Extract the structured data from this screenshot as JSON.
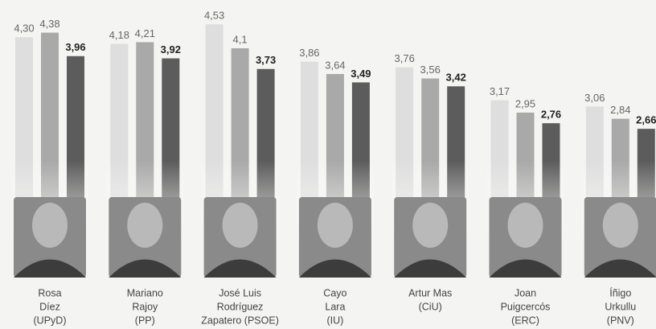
{
  "chart_data": {
    "type": "bar",
    "categories": [
      [
        "Rosa",
        "Díez",
        "(UPyD)"
      ],
      [
        "Mariano",
        "Rajoy",
        "(PP)"
      ],
      [
        "José Luis",
        "Rodríguez",
        "Zapatero (PSOE)"
      ],
      [
        "Cayo",
        "Lara",
        "(IU)"
      ],
      [
        "Artur Mas",
        "(CiU)"
      ],
      [
        "Joan",
        "Puigcercós",
        "(ERC)"
      ],
      [
        "Íñigo",
        "Urkullu",
        "(PNV)"
      ]
    ],
    "series": [
      {
        "color": "#dedede",
        "values": [
          4.3,
          4.18,
          4.53,
          3.86,
          3.76,
          3.17,
          3.06
        ],
        "value_labels": [
          "4,30",
          "4,18",
          "4,53",
          "3,86",
          "3,76",
          "3,17",
          "3,06"
        ]
      },
      {
        "color": "#a9a9a9",
        "values": [
          4.38,
          4.21,
          4.1,
          3.64,
          3.56,
          2.95,
          2.84
        ],
        "value_labels": [
          "4,38",
          "4,21",
          "4,1",
          "3,64",
          "3,56",
          "2,95",
          "2,84"
        ]
      },
      {
        "color": "#5c5c5c",
        "values": [
          3.96,
          3.92,
          3.73,
          3.49,
          3.42,
          2.76,
          2.66
        ],
        "value_labels": [
          "3,96",
          "3,92",
          "3,73",
          "3,49",
          "3,42",
          "2,76",
          "2,66"
        ]
      }
    ]
  }
}
